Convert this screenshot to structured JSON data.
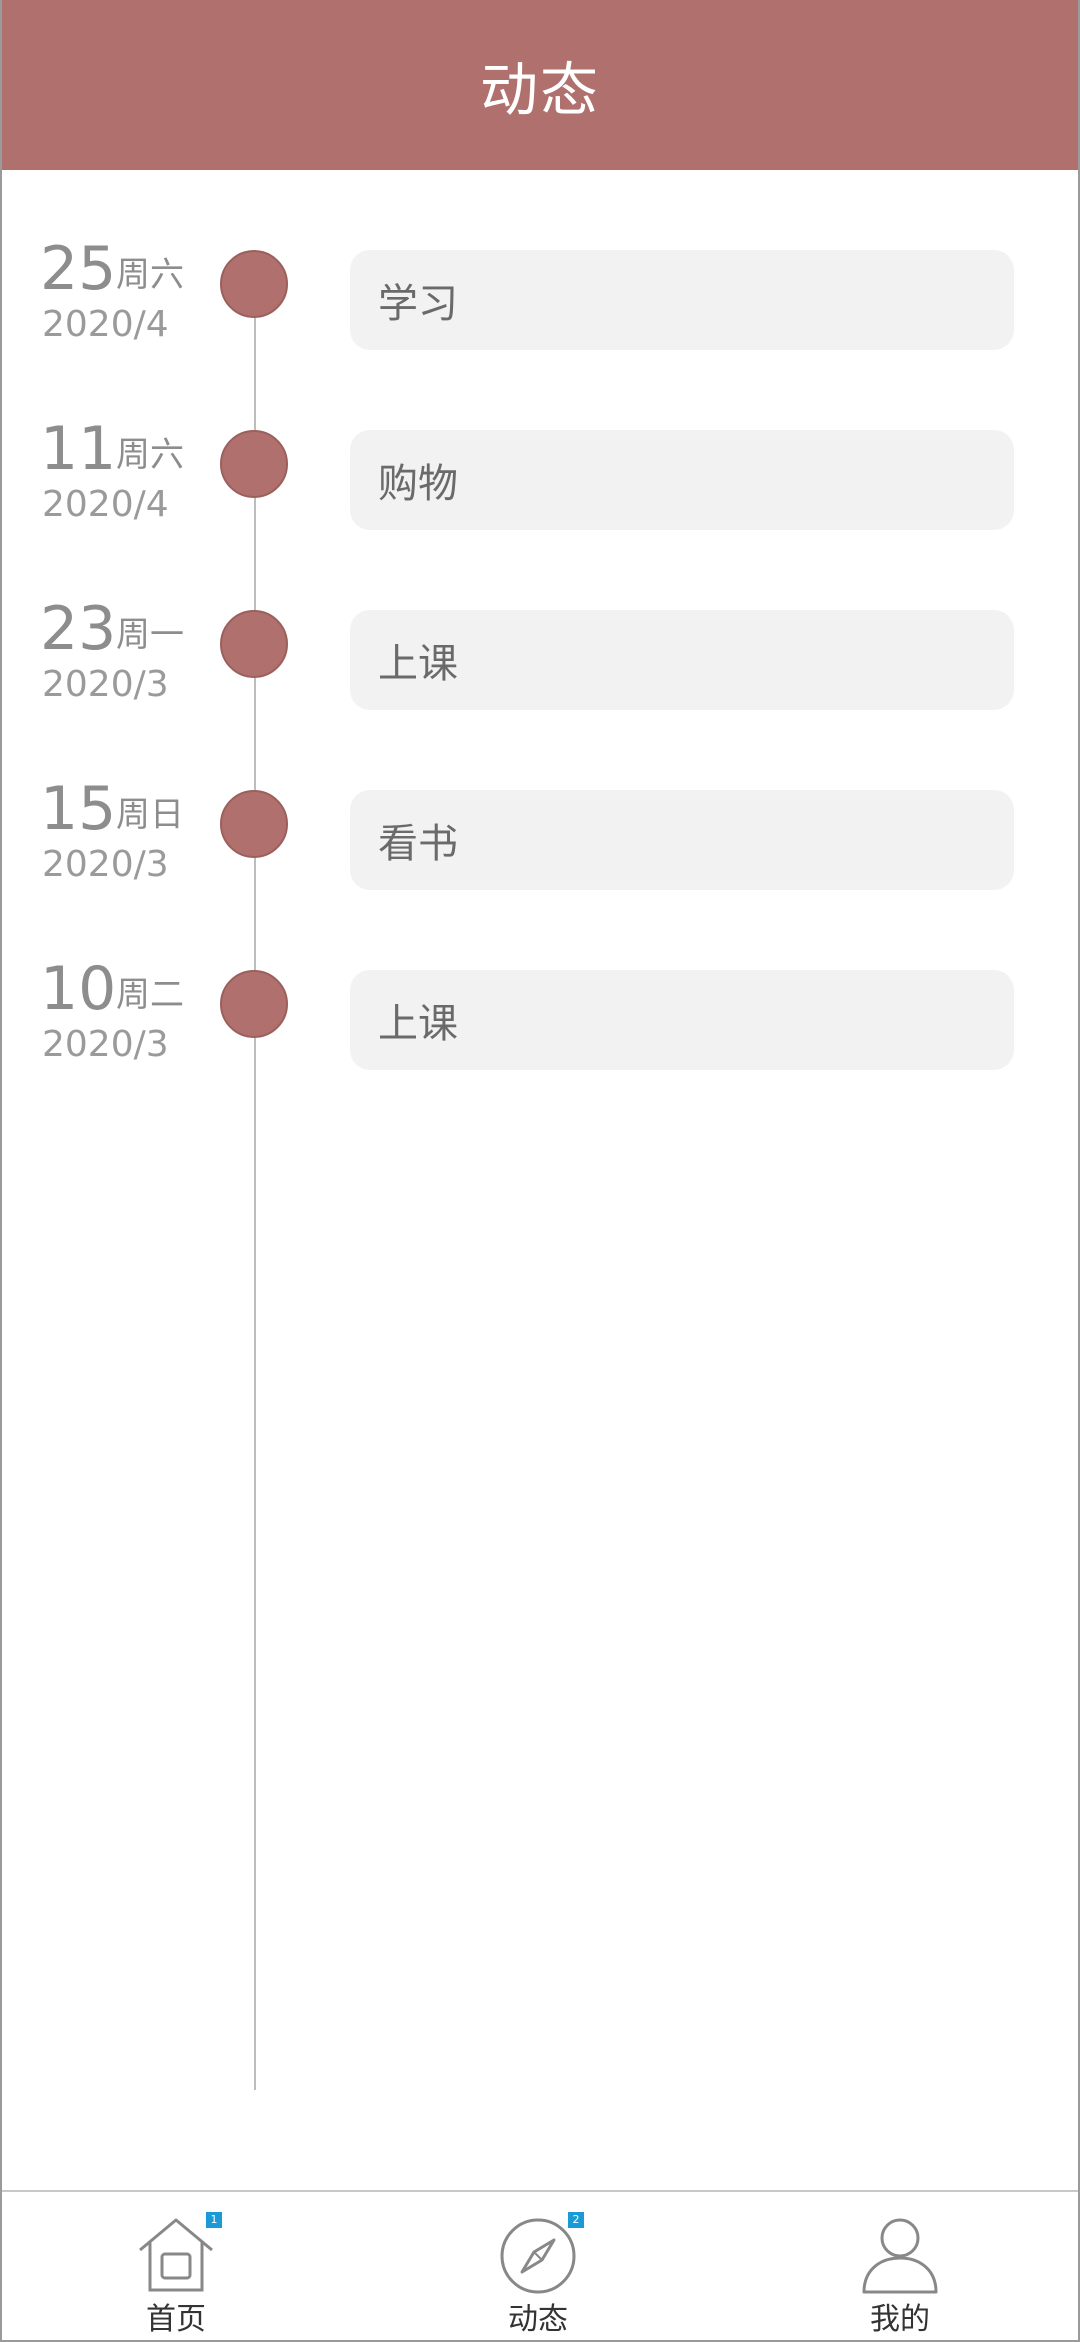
{
  "header": {
    "title": "动态"
  },
  "timeline": [
    {
      "day": "25",
      "weekday": "周六",
      "yearmonth": "2020/4",
      "activity": "学习"
    },
    {
      "day": "11",
      "weekday": "周六",
      "yearmonth": "2020/4",
      "activity": "购物"
    },
    {
      "day": "23",
      "weekday": "周一",
      "yearmonth": "2020/3",
      "activity": "上课"
    },
    {
      "day": "15",
      "weekday": "周日",
      "yearmonth": "2020/3",
      "activity": "看书"
    },
    {
      "day": "10",
      "weekday": "周二",
      "yearmonth": "2020/3",
      "activity": "上课"
    }
  ],
  "tabbar": {
    "tabs": [
      {
        "label": "首页",
        "icon": "home-icon",
        "badge": "1"
      },
      {
        "label": "动态",
        "icon": "compass-icon",
        "badge": "2"
      },
      {
        "label": "我的",
        "icon": "user-icon",
        "badge": ""
      }
    ]
  },
  "colors": {
    "accent": "#b0706d",
    "card_bg": "#f2f2f2",
    "badge": "#1a9ad6"
  }
}
